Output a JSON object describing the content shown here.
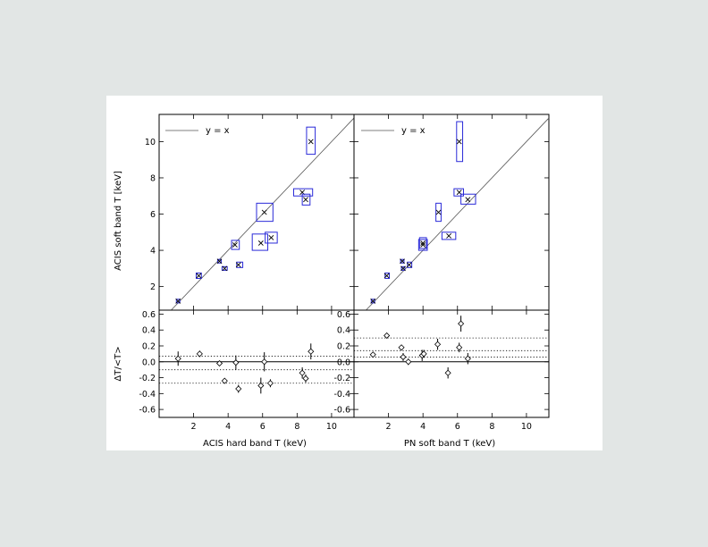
{
  "colors": {
    "background": "#e2e6e5",
    "card": "#ffffff",
    "box": "#2a2ad8",
    "axis": "#000000",
    "point": "#000000",
    "reference_line": "#555555"
  },
  "legend": {
    "label": "y = x"
  },
  "chart_data": [
    {
      "type": "scatter",
      "panel": "top-left",
      "xlabel": "",
      "ylabel": "ACIS soft band T [keV]",
      "xlim": [
        0,
        11.3
      ],
      "ylim": [
        0.7,
        11.5
      ],
      "x_ticks": [
        2,
        4,
        6,
        8,
        10
      ],
      "y_ticks": [
        2,
        4,
        6,
        8,
        10
      ],
      "y_tick_labels": [
        "2",
        "4",
        "6",
        "8",
        "10"
      ],
      "legend": "top-left",
      "reference_line": "y = x",
      "points": [
        {
          "x": 1.1,
          "y": 1.2,
          "x_lo": 1.0,
          "x_hi": 1.2,
          "y_lo": 1.1,
          "y_hi": 1.3
        },
        {
          "x": 2.3,
          "y": 2.6,
          "x_lo": 2.15,
          "x_hi": 2.45,
          "y_lo": 2.45,
          "y_hi": 2.75
        },
        {
          "x": 3.5,
          "y": 3.4,
          "x_lo": 3.4,
          "x_hi": 3.6,
          "y_lo": 3.3,
          "y_hi": 3.5
        },
        {
          "x": 3.8,
          "y": 3.0,
          "x_lo": 3.65,
          "x_hi": 3.95,
          "y_lo": 2.9,
          "y_hi": 3.1
        },
        {
          "x": 4.4,
          "y": 4.3,
          "x_lo": 4.2,
          "x_hi": 4.65,
          "y_lo": 4.05,
          "y_hi": 4.55
        },
        {
          "x": 4.6,
          "y": 3.2,
          "x_lo": 4.5,
          "x_hi": 4.85,
          "y_lo": 3.05,
          "y_hi": 3.35
        },
        {
          "x": 5.9,
          "y": 4.4,
          "x_lo": 5.4,
          "x_hi": 6.3,
          "y_lo": 4.0,
          "y_hi": 4.9
        },
        {
          "x": 6.1,
          "y": 6.1,
          "x_lo": 5.65,
          "x_hi": 6.6,
          "y_lo": 5.6,
          "y_hi": 6.6
        },
        {
          "x": 6.5,
          "y": 4.7,
          "x_lo": 6.15,
          "x_hi": 6.85,
          "y_lo": 4.4,
          "y_hi": 5.0
        },
        {
          "x": 8.3,
          "y": 7.2,
          "x_lo": 7.8,
          "x_hi": 8.9,
          "y_lo": 7.0,
          "y_hi": 7.4
        },
        {
          "x": 8.5,
          "y": 6.8,
          "x_lo": 8.3,
          "x_hi": 8.75,
          "y_lo": 6.5,
          "y_hi": 7.1
        },
        {
          "x": 8.8,
          "y": 10.0,
          "x_lo": 8.55,
          "x_hi": 9.05,
          "y_lo": 9.3,
          "y_hi": 10.8
        }
      ]
    },
    {
      "type": "scatter",
      "panel": "top-right",
      "xlabel": "",
      "ylabel": "",
      "xlim": [
        0,
        11.3
      ],
      "ylim": [
        0.7,
        11.5
      ],
      "x_ticks": [
        2,
        4,
        6,
        8,
        10
      ],
      "y_ticks": [
        2,
        4,
        6,
        8,
        10
      ],
      "legend": "top-left",
      "reference_line": "y = x",
      "points": [
        {
          "x": 1.1,
          "y": 1.2,
          "x_lo": 1.0,
          "x_hi": 1.2,
          "y_lo": 1.1,
          "y_hi": 1.3
        },
        {
          "x": 1.9,
          "y": 2.6,
          "x_lo": 1.8,
          "x_hi": 2.05,
          "y_lo": 2.45,
          "y_hi": 2.75
        },
        {
          "x": 2.8,
          "y": 3.4,
          "x_lo": 2.7,
          "x_hi": 2.9,
          "y_lo": 3.3,
          "y_hi": 3.5
        },
        {
          "x": 2.85,
          "y": 3.0,
          "x_lo": 2.75,
          "x_hi": 2.95,
          "y_lo": 2.9,
          "y_hi": 3.1
        },
        {
          "x": 3.2,
          "y": 3.2,
          "x_lo": 3.1,
          "x_hi": 3.35,
          "y_lo": 3.05,
          "y_hi": 3.35
        },
        {
          "x": 4.0,
          "y": 4.3,
          "x_lo": 3.75,
          "x_hi": 4.25,
          "y_lo": 4.0,
          "y_hi": 4.6
        },
        {
          "x": 4.0,
          "y": 4.4,
          "x_lo": 3.8,
          "x_hi": 4.2,
          "y_lo": 4.1,
          "y_hi": 4.7
        },
        {
          "x": 4.9,
          "y": 6.1,
          "x_lo": 4.75,
          "x_hi": 5.05,
          "y_lo": 5.6,
          "y_hi": 6.6
        },
        {
          "x": 5.5,
          "y": 4.8,
          "x_lo": 5.1,
          "x_hi": 5.9,
          "y_lo": 4.6,
          "y_hi": 5.0
        },
        {
          "x": 6.1,
          "y": 7.2,
          "x_lo": 5.8,
          "x_hi": 6.35,
          "y_lo": 7.0,
          "y_hi": 7.4
        },
        {
          "x": 6.6,
          "y": 6.8,
          "x_lo": 6.2,
          "x_hi": 7.05,
          "y_lo": 6.55,
          "y_hi": 7.1
        },
        {
          "x": 6.1,
          "y": 10.0,
          "x_lo": 5.95,
          "x_hi": 6.3,
          "y_lo": 8.9,
          "y_hi": 11.1
        }
      ]
    },
    {
      "type": "scatter",
      "panel": "bottom-left",
      "xlabel": "ACIS hard band T (keV)",
      "ylabel": "ΔT/<T>",
      "xlim": [
        0,
        11.3
      ],
      "ylim": [
        -0.7,
        0.65
      ],
      "x_ticks": [
        2,
        4,
        6,
        8,
        10
      ],
      "x_tick_labels": [
        "2",
        "4",
        "6",
        "8",
        "10"
      ],
      "y_ticks": [
        -0.6,
        -0.4,
        -0.2,
        0.0,
        0.2,
        0.4,
        0.6
      ],
      "y_tick_labels": [
        "-0.6",
        "-0.4",
        "-0.2",
        "0.0",
        "0.2",
        "0.4",
        "0.6"
      ],
      "zero_line": 0.0,
      "dotted_lines": [
        0.07,
        -0.1,
        -0.27
      ],
      "points": [
        {
          "x": 1.1,
          "y": 0.04,
          "err": 0.09
        },
        {
          "x": 2.35,
          "y": 0.1,
          "err": 0.04
        },
        {
          "x": 3.5,
          "y": -0.02,
          "err": 0.03
        },
        {
          "x": 3.8,
          "y": -0.24,
          "err": 0.03
        },
        {
          "x": 4.45,
          "y": -0.01,
          "err": 0.09
        },
        {
          "x": 4.6,
          "y": -0.34,
          "err": 0.05
        },
        {
          "x": 5.9,
          "y": -0.3,
          "err": 0.1
        },
        {
          "x": 6.1,
          "y": 0.0,
          "err": 0.12
        },
        {
          "x": 6.45,
          "y": -0.27,
          "err": 0.05
        },
        {
          "x": 8.3,
          "y": -0.14,
          "err": 0.07
        },
        {
          "x": 8.5,
          "y": -0.21,
          "err": 0.05
        },
        {
          "x": 8.8,
          "y": 0.13,
          "err": 0.1
        }
      ]
    },
    {
      "type": "scatter",
      "panel": "bottom-right",
      "xlabel": "PN soft band T (keV)",
      "ylabel": "",
      "xlim": [
        0,
        11.3
      ],
      "ylim": [
        -0.7,
        0.65
      ],
      "x_ticks": [
        2,
        4,
        6,
        8,
        10
      ],
      "x_tick_labels": [
        "2",
        "4",
        "6",
        "8",
        "10"
      ],
      "y_ticks": [
        -0.6,
        -0.4,
        -0.2,
        0.0,
        0.2,
        0.4,
        0.6
      ],
      "y_tick_labels": [
        "-0.6",
        "-0.4",
        "-0.2",
        "0.0",
        "0.2",
        "0.4",
        "0.6"
      ],
      "zero_line": 0.0,
      "dotted_lines": [
        0.3,
        0.14,
        0.06
      ],
      "points": [
        {
          "x": 1.1,
          "y": 0.09,
          "err": 0.03
        },
        {
          "x": 1.9,
          "y": 0.33,
          "err": 0.03
        },
        {
          "x": 2.75,
          "y": 0.18,
          "err": 0.03
        },
        {
          "x": 2.85,
          "y": 0.06,
          "err": 0.05
        },
        {
          "x": 3.15,
          "y": 0.0,
          "err": 0.04
        },
        {
          "x": 3.95,
          "y": 0.08,
          "err": 0.07
        },
        {
          "x": 4.05,
          "y": 0.1,
          "err": 0.05
        },
        {
          "x": 4.85,
          "y": 0.22,
          "err": 0.07
        },
        {
          "x": 5.45,
          "y": -0.14,
          "err": 0.07
        },
        {
          "x": 6.1,
          "y": 0.18,
          "err": 0.06
        },
        {
          "x": 6.2,
          "y": 0.48,
          "err": 0.1
        },
        {
          "x": 6.6,
          "y": 0.04,
          "err": 0.07
        }
      ]
    }
  ]
}
